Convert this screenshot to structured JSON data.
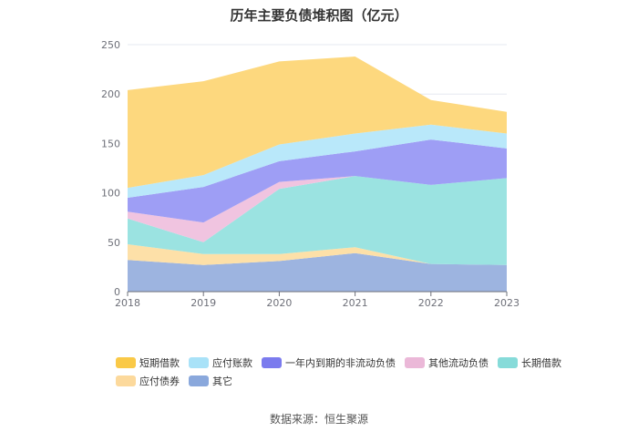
{
  "title": "历年主要负债堆积图（亿元）",
  "source": "数据来源：恒生聚源",
  "chart_data": {
    "type": "area",
    "stacked": true,
    "title": "历年主要负债堆积图（亿元）",
    "xlabel": "",
    "ylabel": "",
    "ylim": [
      0,
      250
    ],
    "yticks": [
      0,
      50,
      100,
      150,
      200,
      250
    ],
    "categories": [
      "2018",
      "2019",
      "2020",
      "2021",
      "2022",
      "2023"
    ],
    "grid": true,
    "legend_position": "bottom",
    "series": [
      {
        "name": "其它",
        "color": "#9db4e0",
        "values": [
          32,
          27,
          31,
          39,
          28,
          27
        ]
      },
      {
        "name": "应付债券",
        "color": "#fde0a8",
        "values": [
          16,
          11,
          7,
          6,
          0,
          0
        ]
      },
      {
        "name": "长期借款",
        "color": "#9be3e1",
        "values": [
          26,
          12,
          66,
          72,
          80,
          88
        ]
      },
      {
        "name": "其他流动负债",
        "color": "#f0c4e0",
        "values": [
          7,
          20,
          7,
          0,
          0,
          0
        ]
      },
      {
        "name": "一年内到期的非流动负债",
        "color": "#9e9ef5",
        "values": [
          14,
          36,
          21,
          25,
          46,
          30
        ]
      },
      {
        "name": "应付账款",
        "color": "#b9e8fa",
        "values": [
          10,
          12,
          17,
          18,
          15,
          15
        ]
      },
      {
        "name": "短期借款",
        "color": "#fdd87e",
        "values": [
          99,
          95,
          84,
          78,
          25,
          22
        ]
      }
    ]
  },
  "legend_rows": [
    [
      {
        "label": "短期借款",
        "color": "#fac947"
      },
      {
        "label": "应付账款",
        "color": "#a9e2f8"
      },
      {
        "label": "一年内到期的非流动负债",
        "color": "#7b7bee"
      },
      {
        "label": "其他流动负债",
        "color": "#ebb8d8"
      },
      {
        "label": "长期借款",
        "color": "#86dbd9"
      }
    ],
    [
      {
        "label": "应付债券",
        "color": "#fcd99c"
      },
      {
        "label": "其它",
        "color": "#8aa8dc"
      }
    ]
  ]
}
